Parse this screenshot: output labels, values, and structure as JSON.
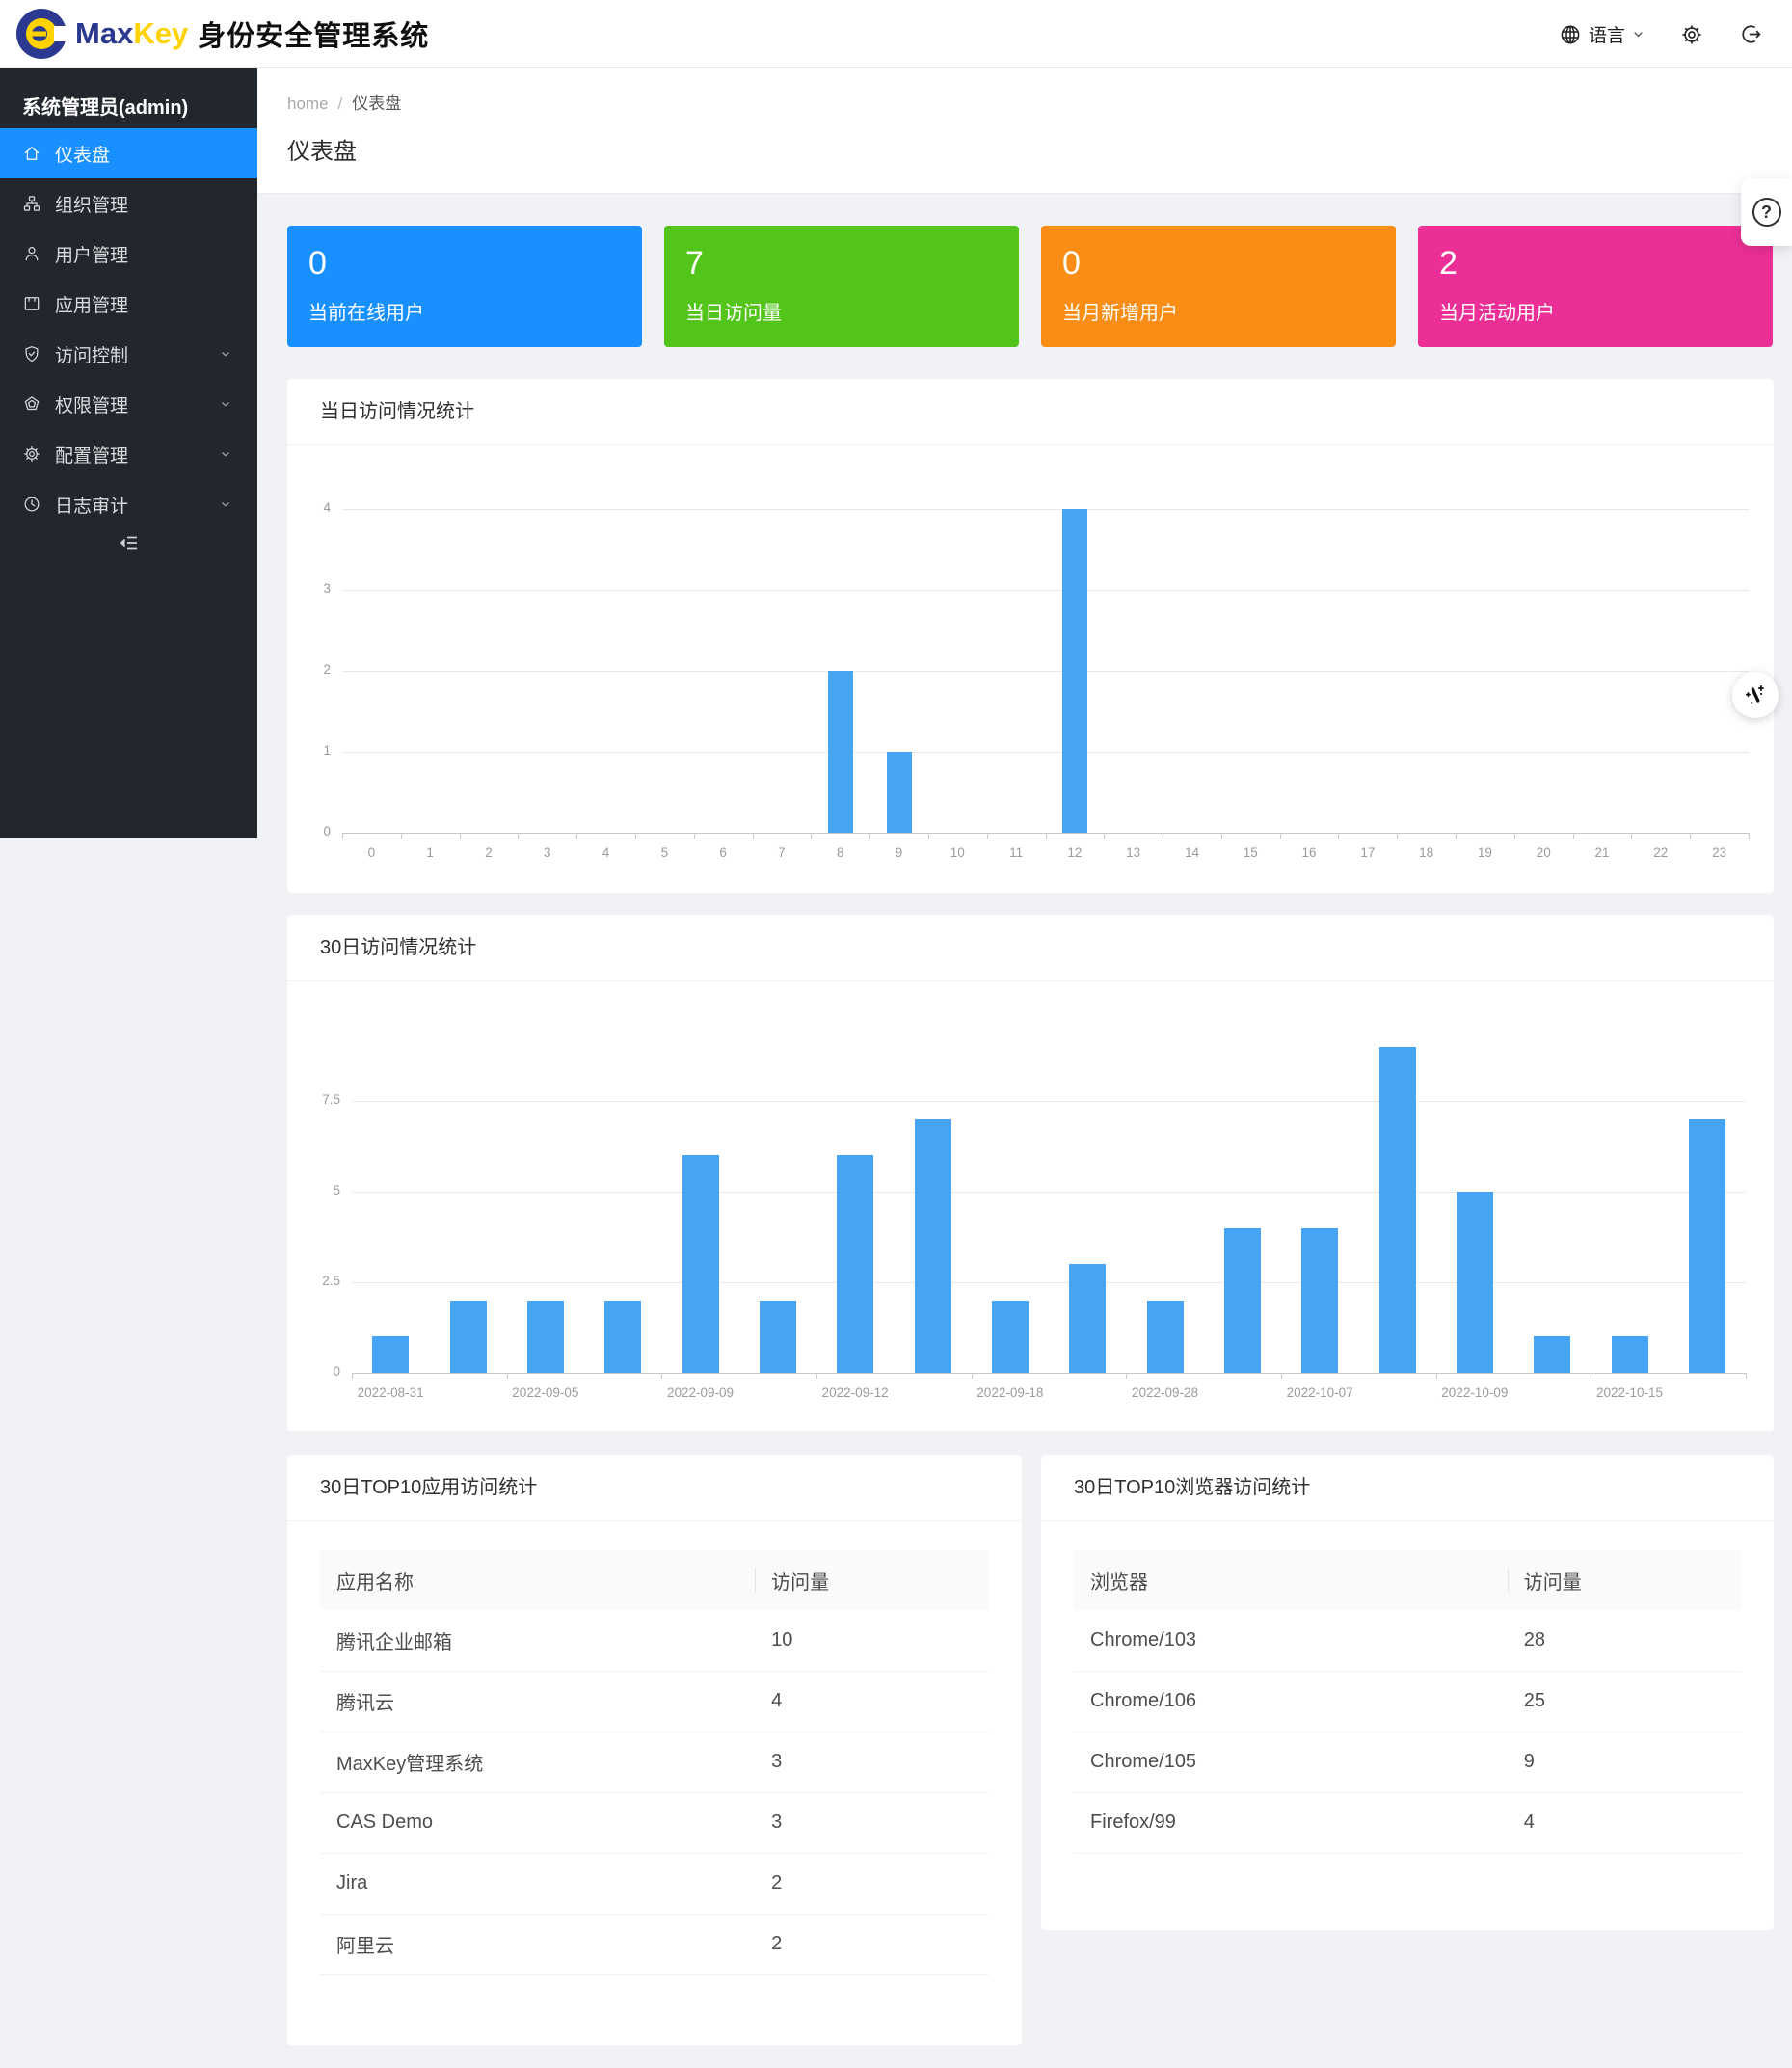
{
  "header": {
    "brand_max": "Max",
    "brand_key": "Key",
    "system_title": "身份安全管理系统",
    "language_label": "语言",
    "icons": {
      "language": "globe-icon",
      "language_caret": "chevron-down-icon",
      "settings": "gear-icon",
      "logout": "logout-icon"
    }
  },
  "sidebar": {
    "admin_label": "系统管理员(admin)",
    "collapse_icon": "menu-fold-icon",
    "items": [
      {
        "label": "仪表盘",
        "icon": "home",
        "active": true,
        "expandable": false
      },
      {
        "label": "组织管理",
        "icon": "org",
        "active": false,
        "expandable": false
      },
      {
        "label": "用户管理",
        "icon": "user",
        "active": false,
        "expandable": false
      },
      {
        "label": "应用管理",
        "icon": "app",
        "active": false,
        "expandable": false
      },
      {
        "label": "访问控制",
        "icon": "shield-check",
        "active": false,
        "expandable": true
      },
      {
        "label": "权限管理",
        "icon": "pentagon",
        "active": false,
        "expandable": true
      },
      {
        "label": "配置管理",
        "icon": "gear",
        "active": false,
        "expandable": true
      },
      {
        "label": "日志审计",
        "icon": "clock",
        "active": false,
        "expandable": true
      }
    ]
  },
  "breadcrumb": {
    "home": "home",
    "separator": "/",
    "current": "仪表盘"
  },
  "page": {
    "title": "仪表盘"
  },
  "stat_cards": [
    {
      "value": "0",
      "label": "当前在线用户",
      "color": "#1990ff"
    },
    {
      "value": "7",
      "label": "当日访问量",
      "color": "#52c41a"
    },
    {
      "value": "0",
      "label": "当月新增用户",
      "color": "#f98d15"
    },
    {
      "value": "2",
      "label": "当月活动用户",
      "color": "#eb2f96"
    }
  ],
  "chart_data": [
    {
      "type": "bar",
      "title": "当日访问情况统计",
      "categories": [
        "0",
        "1",
        "2",
        "3",
        "4",
        "5",
        "6",
        "7",
        "8",
        "9",
        "10",
        "11",
        "12",
        "13",
        "14",
        "15",
        "16",
        "17",
        "18",
        "19",
        "20",
        "21",
        "22",
        "23"
      ],
      "values": [
        0,
        0,
        0,
        0,
        0,
        0,
        0,
        0,
        2,
        1,
        0,
        0,
        4,
        0,
        0,
        0,
        0,
        0,
        0,
        0,
        0,
        0,
        0,
        0
      ],
      "xlabel": "",
      "ylabel": "",
      "yticks": [
        0,
        1,
        2,
        3,
        4
      ],
      "ylim": [
        0,
        4
      ],
      "grid": true,
      "legend": "none",
      "bar_color": "#47a3f3"
    },
    {
      "type": "bar",
      "title": "30日访问情况统计",
      "categories": [
        "2022-08-31",
        "",
        "2022-09-05",
        "",
        "2022-09-09",
        "",
        "2022-09-12",
        "",
        "2022-09-18",
        "",
        "2022-09-28",
        "",
        "2022-10-07",
        "",
        "2022-10-09",
        "",
        "2022-10-15",
        ""
      ],
      "values": [
        1,
        2,
        2,
        2,
        6,
        2,
        6,
        7,
        2,
        3,
        2,
        4,
        4,
        9,
        5,
        1,
        1,
        7
      ],
      "xlabel": "",
      "ylabel": "",
      "yticks": [
        0,
        2.5,
        5,
        7.5
      ],
      "ylim": [
        0,
        9
      ],
      "grid": true,
      "legend": "none",
      "bar_color": "#47a3f3"
    }
  ],
  "tables": [
    {
      "title": "30日TOP10应用访问统计",
      "columns": [
        "应用名称",
        "访问量"
      ],
      "rows": [
        [
          "腾讯企业邮箱",
          "10"
        ],
        [
          "腾讯云",
          "4"
        ],
        [
          "MaxKey管理系统",
          "3"
        ],
        [
          "CAS Demo",
          "3"
        ],
        [
          "Jira",
          "2"
        ],
        [
          "阿里云",
          "2"
        ]
      ]
    },
    {
      "title": "30日TOP10浏览器访问统计",
      "columns": [
        "浏览器",
        "访问量"
      ],
      "rows": [
        [
          "Chrome/103",
          "28"
        ],
        [
          "Chrome/106",
          "25"
        ],
        [
          "Chrome/105",
          "9"
        ],
        [
          "Firefox/99",
          "4"
        ]
      ]
    }
  ],
  "floating": {
    "help_icon": "question-circle-icon",
    "magic_icon": "magic-wand-icon",
    "help_glyph": "?"
  },
  "colors": {
    "accent_blue": "#1890ff",
    "bar_blue": "#47a3f3",
    "sidebar_bg": "#22262d"
  }
}
